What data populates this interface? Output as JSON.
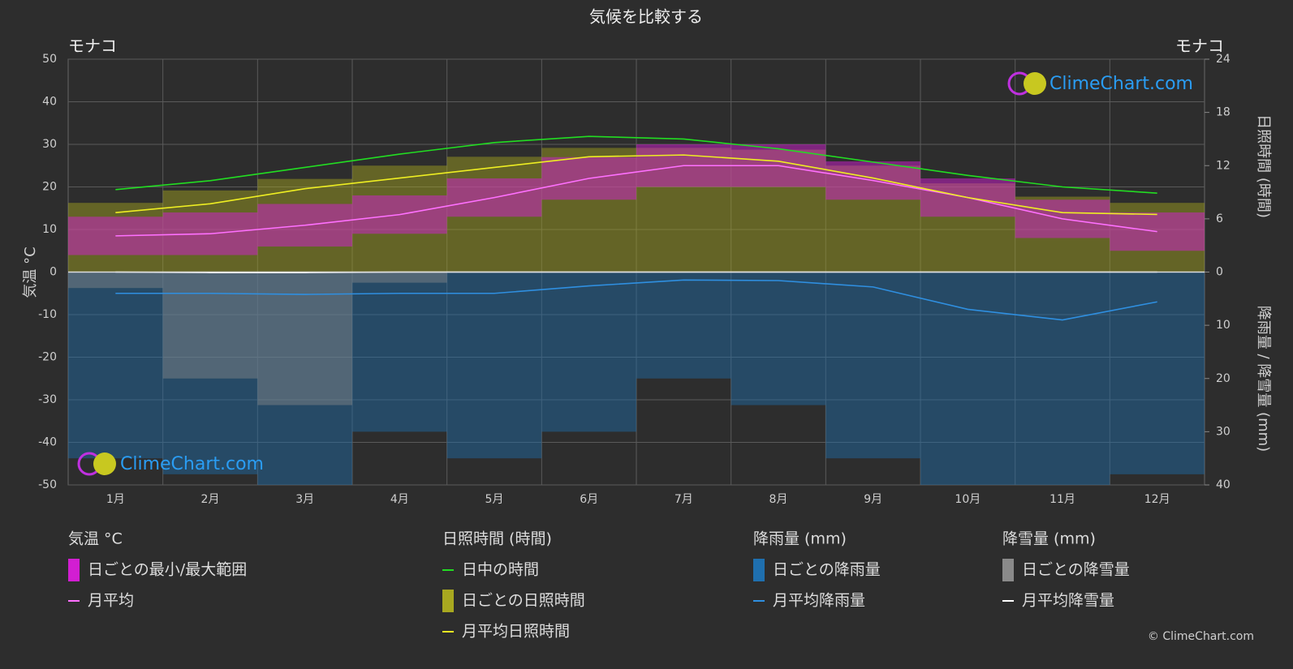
{
  "chart_data": {
    "type": "climate",
    "title": "気候を比較する",
    "location_left": "モナコ",
    "location_right": "モナコ",
    "y_label": "気温 °C",
    "y2_label": "日照時間 (時間)",
    "y3_label": "降雨量 / 降雪量 (mm)",
    "watermark": "ClimeChart.com",
    "copyright": "© ClimeChart.com",
    "categories": [
      "1月",
      "2月",
      "3月",
      "4月",
      "5月",
      "6月",
      "7月",
      "8月",
      "9月",
      "10月",
      "11月",
      "12月"
    ],
    "ylim": [
      -50,
      50
    ],
    "yticks": [
      -50,
      -40,
      -30,
      -20,
      -10,
      0,
      10,
      20,
      30,
      40,
      50
    ],
    "y2lim": [
      0,
      24
    ],
    "y2ticks": [
      0,
      6,
      12,
      18,
      24
    ],
    "y3lim": [
      0,
      40
    ],
    "y3ticks": [
      0,
      10,
      20,
      30,
      40
    ],
    "grid": true,
    "groups": [
      {
        "title": "気温 °C",
        "series": [
          {
            "name": "日ごとの最小/最大範囲",
            "kind": "band",
            "axis": "y",
            "color": "#d21ed2",
            "min": [
              4,
              4,
              6,
              9,
              13,
              17,
              20,
              20,
              17,
              13,
              8,
              5
            ],
            "max": [
              13,
              14,
              16,
              18,
              22,
              27,
              30,
              30,
              26,
              22,
              17,
              14
            ]
          },
          {
            "name": "月平均",
            "kind": "line",
            "axis": "y",
            "color": "#ff70ff",
            "values": [
              8.5,
              9,
              11,
              13.5,
              17.5,
              22,
              25,
              25,
              21.5,
              17.5,
              12.5,
              9.5
            ]
          }
        ]
      },
      {
        "title": "日照時間 (時間)",
        "series": [
          {
            "name": "日中の時間",
            "kind": "line",
            "axis": "y2",
            "color": "#22dd22",
            "values": [
              9.3,
              10.3,
              11.8,
              13.3,
              14.6,
              15.3,
              15.0,
              13.9,
              12.4,
              10.9,
              9.6,
              8.9
            ]
          },
          {
            "name": "日ごとの日照時間",
            "kind": "bars",
            "axis": "y2",
            "color": "#a8a820",
            "values": [
              7.8,
              9.2,
              10.5,
              12,
              13,
              14,
              14,
              13.8,
              12,
              10,
              8.5,
              7.8
            ]
          },
          {
            "name": "月平均日照時間",
            "kind": "line",
            "axis": "y2",
            "color": "#eeee22",
            "values": [
              6.7,
              7.7,
              9.4,
              10.6,
              11.8,
              13.0,
              13.2,
              12.5,
              10.6,
              8.4,
              6.7,
              6.5
            ]
          }
        ]
      },
      {
        "title": "降雨量 (mm)",
        "series": [
          {
            "name": "日ごとの降雨量",
            "kind": "bars",
            "axis": "y3",
            "color": "#1f6fae",
            "values": [
              35,
              38,
              40,
              30,
              35,
              30,
              20,
              25,
              35,
              40,
              40,
              38
            ]
          },
          {
            "name": "月平均降雨量",
            "kind": "line",
            "axis": "y3",
            "color": "#2f8fe0",
            "values": [
              4,
              4,
              4.2,
              4,
              4,
              2.6,
              1.5,
              1.6,
              2.8,
              7,
              9,
              5.6
            ]
          }
        ]
      },
      {
        "title": "降雪量 (mm)",
        "series": [
          {
            "name": "日ごとの降雪量",
            "kind": "bars",
            "axis": "y3",
            "color": "#8a8a8a",
            "values": [
              3,
              20,
              25,
              2,
              0,
              0,
              0,
              0,
              0,
              0,
              0,
              0
            ]
          },
          {
            "name": "月平均降雪量",
            "kind": "line",
            "axis": "y3",
            "color": "#ffffff",
            "values": [
              0,
              0.1,
              0.1,
              0,
              0,
              0,
              0,
              0,
              0,
              0,
              0,
              0
            ]
          }
        ]
      }
    ]
  }
}
